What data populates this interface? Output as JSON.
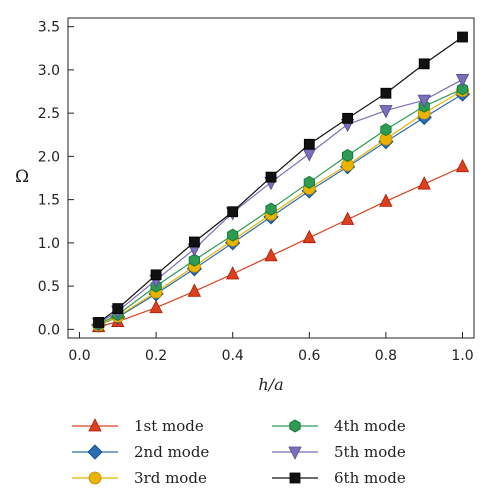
{
  "chart_data": {
    "type": "line",
    "title": "",
    "xlabel": "h/a",
    "ylabel": "Ω",
    "xlim": [
      0.0,
      1.0
    ],
    "ylim": [
      -0.1,
      3.6
    ],
    "xticks": [
      "0.0",
      "0.2",
      "0.4",
      "0.6",
      "0.8",
      "1.0"
    ],
    "yticks": [
      "0.0",
      "0.5",
      "1.0",
      "1.5",
      "2.0",
      "2.5",
      "3.0",
      "3.5"
    ],
    "grid": false,
    "legend_position": "bottom",
    "x": [
      0.05,
      0.1,
      0.2,
      0.3,
      0.4,
      0.5,
      0.6,
      0.7,
      0.8,
      0.9,
      1.0
    ],
    "series": [
      {
        "name": "1st mode",
        "marker": "triangle-up",
        "color": "#d9411e",
        "values": [
          0.03,
          0.09,
          0.25,
          0.44,
          0.64,
          0.85,
          1.06,
          1.27,
          1.48,
          1.68,
          1.88
        ]
      },
      {
        "name": "2nd mode",
        "marker": "diamond",
        "color": "#2a6db0",
        "values": [
          0.05,
          0.14,
          0.41,
          0.7,
          1.0,
          1.3,
          1.6,
          1.88,
          2.17,
          2.45,
          2.72
        ]
      },
      {
        "name": "3rd mode",
        "marker": "circle",
        "color": "#e8b400",
        "values": [
          0.05,
          0.15,
          0.43,
          0.73,
          1.03,
          1.33,
          1.63,
          1.9,
          2.2,
          2.5,
          2.76
        ]
      },
      {
        "name": "4th mode",
        "marker": "hexagon",
        "color": "#2e9b54",
        "values": [
          0.06,
          0.17,
          0.5,
          0.8,
          1.09,
          1.39,
          1.7,
          2.01,
          2.31,
          2.58,
          2.78
        ]
      },
      {
        "name": "5th mode",
        "marker": "triangle-down",
        "color": "#7a6fb8",
        "values": [
          0.07,
          0.21,
          0.57,
          0.93,
          1.35,
          1.7,
          2.03,
          2.37,
          2.53,
          2.65,
          2.89
        ]
      },
      {
        "name": "6th mode",
        "marker": "square",
        "color": "#111111",
        "values": [
          0.08,
          0.24,
          0.63,
          1.01,
          1.36,
          1.76,
          2.14,
          2.44,
          2.73,
          3.07,
          3.38
        ]
      }
    ]
  }
}
